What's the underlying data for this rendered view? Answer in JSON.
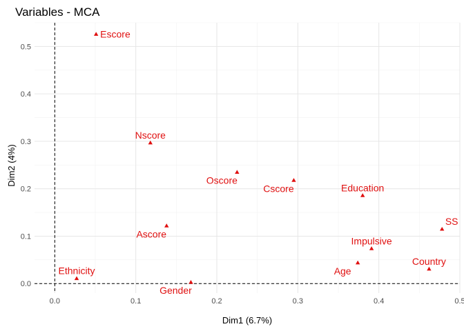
{
  "chart_data": {
    "type": "scatter",
    "title": "Variables - MCA",
    "xlabel": "Dim1 (6.7%)",
    "ylabel": "Dim2 (4%)",
    "xlim": [
      -0.025,
      0.5
    ],
    "ylim": [
      -0.02,
      0.55
    ],
    "xticks": [
      0.0,
      0.1,
      0.2,
      0.3,
      0.4,
      0.5
    ],
    "xtick_labels": [
      "0.0",
      "0.1",
      "0.2",
      "0.3",
      "0.4",
      "0.5"
    ],
    "yticks": [
      0.0,
      0.1,
      0.2,
      0.3,
      0.4,
      0.5
    ],
    "ytick_labels": [
      "0.0",
      "0.1",
      "0.2",
      "0.3",
      "0.4",
      "0.5"
    ],
    "grid": true,
    "reference_lines": {
      "x": 0,
      "y": 0,
      "style": "dashed"
    },
    "marker": "triangle",
    "color": "#e01010",
    "points": [
      {
        "label": "Escore",
        "x": 0.051,
        "y": 0.526,
        "label_pos": "right"
      },
      {
        "label": "Nscore",
        "x": 0.118,
        "y": 0.297,
        "label_pos": "above"
      },
      {
        "label": "Oscore",
        "x": 0.225,
        "y": 0.235,
        "label_pos": "below-left"
      },
      {
        "label": "Cscore",
        "x": 0.295,
        "y": 0.218,
        "label_pos": "below-left"
      },
      {
        "label": "Education",
        "x": 0.38,
        "y": 0.186,
        "label_pos": "above"
      },
      {
        "label": "Ascore",
        "x": 0.138,
        "y": 0.122,
        "label_pos": "below-left"
      },
      {
        "label": "SS",
        "x": 0.478,
        "y": 0.115,
        "label_pos": "above-right"
      },
      {
        "label": "Impulsive",
        "x": 0.391,
        "y": 0.074,
        "label_pos": "above"
      },
      {
        "label": "Age",
        "x": 0.374,
        "y": 0.044,
        "label_pos": "below-left"
      },
      {
        "label": "Country",
        "x": 0.462,
        "y": 0.031,
        "label_pos": "above"
      },
      {
        "label": "Ethnicity",
        "x": 0.027,
        "y": 0.011,
        "label_pos": "above"
      },
      {
        "label": "Gender",
        "x": 0.168,
        "y": 0.003,
        "label_pos": "below-left"
      }
    ]
  }
}
